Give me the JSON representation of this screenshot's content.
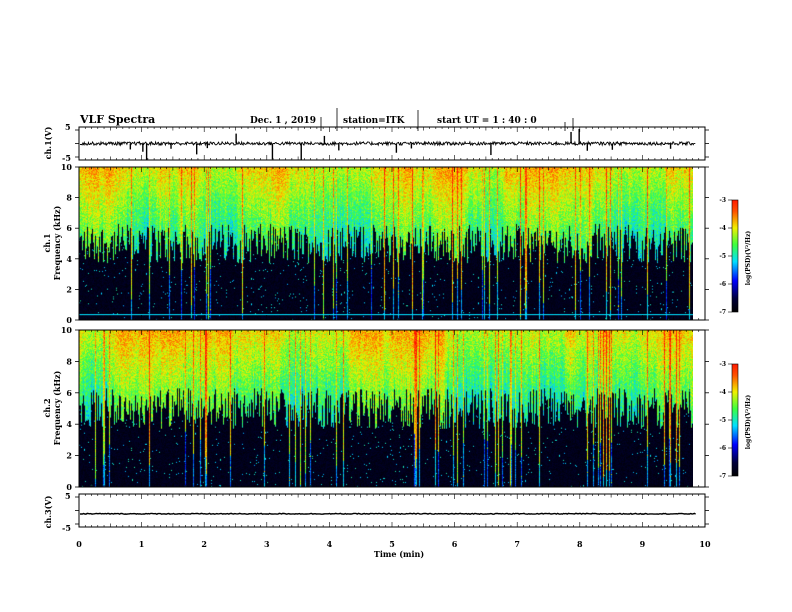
{
  "header": {
    "title": "VLF Spectra",
    "date": "Dec. 1 , 2019",
    "station": "station=ITK",
    "start": "start  UT =   1 : 40 : 0"
  },
  "panels": {
    "ch1_wave": {
      "ylabel": "ch.1(V)",
      "ticks": [
        "5",
        "-5"
      ]
    },
    "ch1_spec": {
      "ylabel1": "ch.1",
      "ylabel2": "Frequency (kHz)",
      "ticks": [
        "0",
        "2",
        "4",
        "6",
        "8",
        "10"
      ]
    },
    "ch2_spec": {
      "ylabel1": "ch.2",
      "ylabel2": "Frequency (kHz)",
      "ticks": [
        "0",
        "2",
        "4",
        "6",
        "8",
        "10"
      ]
    },
    "ch3_wave": {
      "ylabel": "ch.3(V)",
      "ticks": [
        "5",
        "-5"
      ]
    }
  },
  "colorbar": {
    "label": "log(PSD)(V²/Hz)",
    "ticks": [
      "-3",
      "-4",
      "-5",
      "-6",
      "-7"
    ]
  },
  "xaxis": {
    "label": "Time (min)",
    "ticks": [
      "0",
      "1",
      "2",
      "3",
      "4",
      "5",
      "6",
      "7",
      "8",
      "9",
      "10"
    ]
  },
  "colors": {
    "black": "#000000",
    "blue": "#0000ff",
    "cyan": "#00e0ff",
    "green": "#3cff40",
    "yellow": "#ffee00",
    "red": "#ff1a00"
  },
  "chart_data": [
    {
      "type": "line",
      "title": "",
      "ylabel": "ch.1(V)",
      "xlabel": "Time (min)",
      "xlim": [
        0,
        10
      ],
      "ylim": [
        -5,
        5
      ],
      "data_end_min": 9.85,
      "baseline_v": 0,
      "spikes": [
        {
          "x": 0.82,
          "y": -1.8
        },
        {
          "x": 1.02,
          "y": -2.5
        },
        {
          "x": 1.08,
          "y": -5.0
        },
        {
          "x": 1.47,
          "y": -1.6
        },
        {
          "x": 1.88,
          "y": -3.3
        },
        {
          "x": 2.05,
          "y": -1.4
        },
        {
          "x": 2.51,
          "y": 3.0
        },
        {
          "x": 3.09,
          "y": -4.8
        },
        {
          "x": 3.55,
          "y": -5.0
        },
        {
          "x": 3.92,
          "y": 2.3
        },
        {
          "x": 4.15,
          "y": -2.1
        },
        {
          "x": 5.07,
          "y": -2.8
        },
        {
          "x": 5.31,
          "y": -1.5
        },
        {
          "x": 6.58,
          "y": -3.5
        },
        {
          "x": 7.86,
          "y": 3.5
        },
        {
          "x": 7.99,
          "y": 4.4
        },
        {
          "x": 8.12,
          "y": -2.2
        },
        {
          "x": 8.52,
          "y": -1.9
        },
        {
          "x": 9.45,
          "y": -1.6
        }
      ]
    },
    {
      "type": "heatmap",
      "title": "",
      "ylabel": "Frequency (kHz)",
      "xlabel": "Time (min)",
      "xlim": [
        0,
        10
      ],
      "ylim": [
        0,
        10
      ],
      "data_end_min": 9.85,
      "z_range": [
        -7,
        -3
      ],
      "typical_noise_floor_khz": 5.0,
      "cyan_line_khz": 0.3
    },
    {
      "type": "heatmap",
      "title": "",
      "ylabel": "Frequency (kHz)",
      "xlabel": "Time (min)",
      "xlim": [
        0,
        10
      ],
      "ylim": [
        0,
        10
      ],
      "data_end_min": 9.85,
      "z_range": [
        -7,
        -3
      ],
      "typical_noise_floor_khz": 5.0
    },
    {
      "type": "line",
      "title": "",
      "ylabel": "ch.3(V)",
      "xlabel": "Time (min)",
      "xlim": [
        0,
        10
      ],
      "ylim": [
        -5,
        5
      ],
      "data_end_min": 9.85,
      "baseline_v": -1.0
    }
  ]
}
